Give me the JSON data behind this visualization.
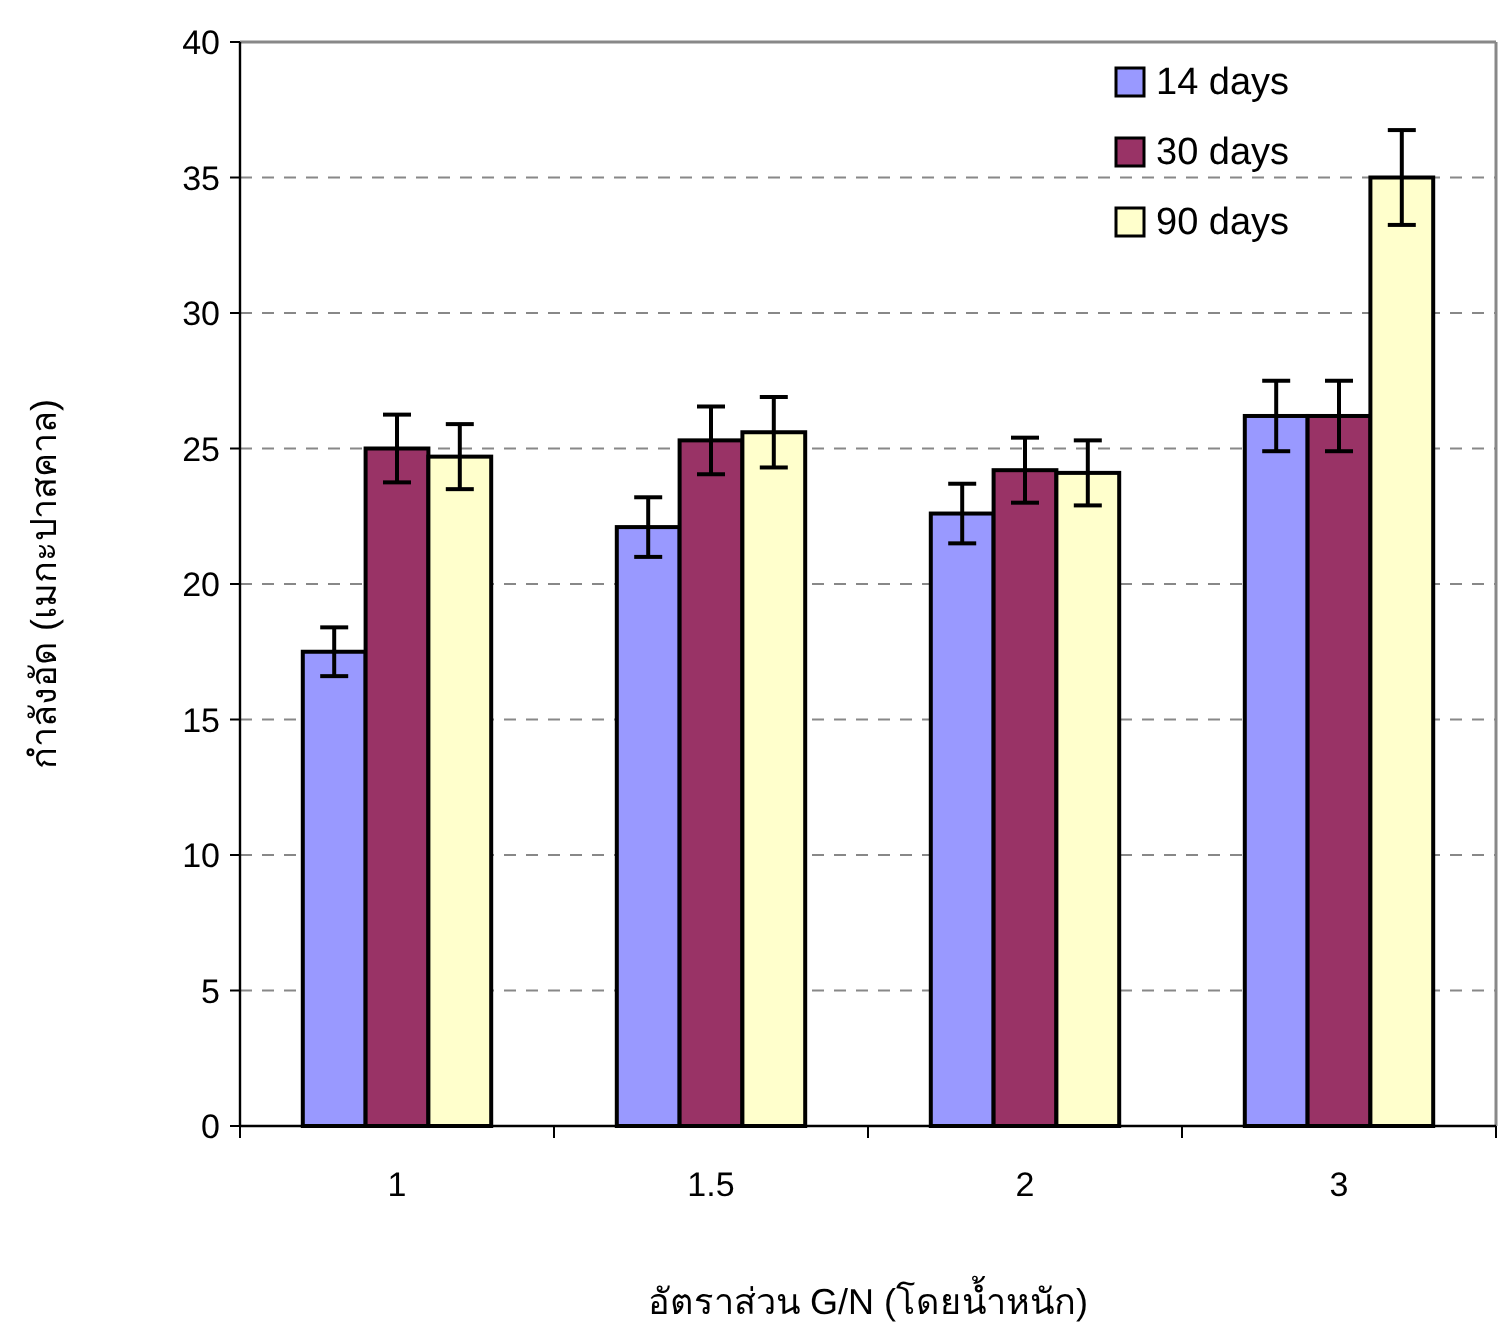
{
  "chart_data": {
    "type": "bar",
    "xlabel": "อัตราส่วน G/N (โดยน้ำหนัก)",
    "ylabel": "กำลังอัด (เมกะปาสคาล)",
    "categories": [
      "1",
      "1.5",
      "2",
      "3"
    ],
    "series": [
      {
        "name": "14 days",
        "color": "#9999ff",
        "values": [
          17.5,
          22.1,
          22.6,
          26.2
        ],
        "errors": [
          0.9,
          1.1,
          1.1,
          1.3
        ]
      },
      {
        "name": "30 days",
        "color": "#993366",
        "values": [
          25.0,
          25.3,
          24.2,
          26.2
        ],
        "errors": [
          1.25,
          1.25,
          1.2,
          1.3
        ]
      },
      {
        "name": "90 days",
        "color": "#ffffcc",
        "values": [
          24.7,
          25.6,
          24.1,
          35.0
        ],
        "errors": [
          1.2,
          1.3,
          1.2,
          1.75
        ]
      }
    ],
    "ylim": [
      0,
      40
    ],
    "yticks": [
      0,
      5,
      10,
      15,
      20,
      25,
      30,
      35,
      40
    ],
    "grid": "y",
    "legend": "top right"
  }
}
